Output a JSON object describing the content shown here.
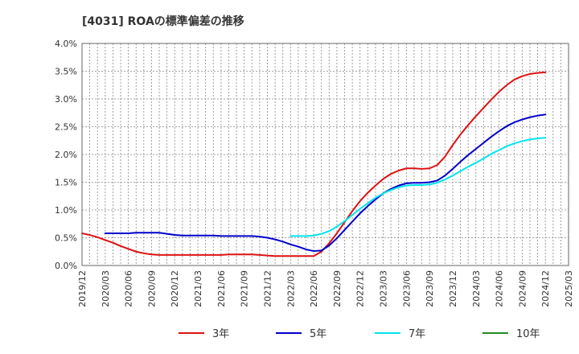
{
  "chart_data": {
    "type": "line",
    "title": "[4031]  ROAの標準偏差の推移",
    "xlabel": "",
    "ylabel": "",
    "ylim": [
      0,
      4.0
    ],
    "yticks": [
      "0.0%",
      "0.5%",
      "1.0%",
      "1.5%",
      "2.0%",
      "2.5%",
      "3.0%",
      "3.5%",
      "4.0%"
    ],
    "xticks": [
      "2019/12",
      "2020/03",
      "2020/06",
      "2020/09",
      "2020/12",
      "2021/03",
      "2021/06",
      "2021/09",
      "2021/12",
      "2022/03",
      "2022/06",
      "2022/09",
      "2022/12",
      "2023/03",
      "2023/06",
      "2023/09",
      "2023/12",
      "2024/03",
      "2024/06",
      "2024/09",
      "2024/12",
      "2025/03"
    ],
    "grid": true,
    "legend_position": "bottom",
    "series": [
      {
        "name": "3年",
        "color": "#dd1111",
        "points": [
          [
            "2019/12",
            0.58
          ],
          [
            "2020/01",
            0.55
          ],
          [
            "2020/02",
            0.51
          ],
          [
            "2020/03",
            0.46
          ],
          [
            "2020/04",
            0.41
          ],
          [
            "2020/05",
            0.35
          ],
          [
            "2020/06",
            0.3
          ],
          [
            "2020/07",
            0.25
          ],
          [
            "2020/08",
            0.22
          ],
          [
            "2020/09",
            0.2
          ],
          [
            "2020/10",
            0.19
          ],
          [
            "2020/11",
            0.19
          ],
          [
            "2020/12",
            0.19
          ],
          [
            "2021/01",
            0.19
          ],
          [
            "2021/02",
            0.19
          ],
          [
            "2021/03",
            0.19
          ],
          [
            "2021/04",
            0.19
          ],
          [
            "2021/05",
            0.19
          ],
          [
            "2021/06",
            0.19
          ],
          [
            "2021/07",
            0.2
          ],
          [
            "2021/08",
            0.2
          ],
          [
            "2021/09",
            0.2
          ],
          [
            "2021/10",
            0.2
          ],
          [
            "2021/11",
            0.19
          ],
          [
            "2021/12",
            0.18
          ],
          [
            "2022/01",
            0.17
          ],
          [
            "2022/02",
            0.17
          ],
          [
            "2022/03",
            0.17
          ],
          [
            "2022/04",
            0.17
          ],
          [
            "2022/05",
            0.17
          ],
          [
            "2022/06",
            0.17
          ],
          [
            "2022/07",
            0.25
          ],
          [
            "2022/08",
            0.4
          ],
          [
            "2022/09",
            0.58
          ],
          [
            "2022/10",
            0.78
          ],
          [
            "2022/11",
            0.98
          ],
          [
            "2022/12",
            1.16
          ],
          [
            "2023/01",
            1.31
          ],
          [
            "2023/02",
            1.44
          ],
          [
            "2023/03",
            1.56
          ],
          [
            "2023/04",
            1.65
          ],
          [
            "2023/05",
            1.71
          ],
          [
            "2023/06",
            1.75
          ],
          [
            "2023/07",
            1.75
          ],
          [
            "2023/08",
            1.74
          ],
          [
            "2023/09",
            1.75
          ],
          [
            "2023/10",
            1.81
          ],
          [
            "2023/11",
            1.96
          ],
          [
            "2023/12",
            2.17
          ],
          [
            "2024/01",
            2.36
          ],
          [
            "2024/02",
            2.53
          ],
          [
            "2024/03",
            2.69
          ],
          [
            "2024/04",
            2.84
          ],
          [
            "2024/05",
            2.99
          ],
          [
            "2024/06",
            3.13
          ],
          [
            "2024/07",
            3.25
          ],
          [
            "2024/08",
            3.35
          ],
          [
            "2024/09",
            3.41
          ],
          [
            "2024/10",
            3.45
          ],
          [
            "2024/11",
            3.47
          ],
          [
            "2024/12",
            3.48
          ]
        ]
      },
      {
        "name": "5年",
        "color": "#0000cc",
        "points": [
          [
            "2020/03",
            0.58
          ],
          [
            "2020/04",
            0.58
          ],
          [
            "2020/05",
            0.58
          ],
          [
            "2020/06",
            0.58
          ],
          [
            "2020/07",
            0.59
          ],
          [
            "2020/08",
            0.59
          ],
          [
            "2020/09",
            0.59
          ],
          [
            "2020/10",
            0.59
          ],
          [
            "2020/11",
            0.57
          ],
          [
            "2020/12",
            0.55
          ],
          [
            "2021/01",
            0.54
          ],
          [
            "2021/02",
            0.54
          ],
          [
            "2021/03",
            0.54
          ],
          [
            "2021/04",
            0.54
          ],
          [
            "2021/05",
            0.54
          ],
          [
            "2021/06",
            0.53
          ],
          [
            "2021/07",
            0.53
          ],
          [
            "2021/08",
            0.53
          ],
          [
            "2021/09",
            0.53
          ],
          [
            "2021/10",
            0.53
          ],
          [
            "2021/11",
            0.52
          ],
          [
            "2021/12",
            0.5
          ],
          [
            "2022/01",
            0.47
          ],
          [
            "2022/02",
            0.43
          ],
          [
            "2022/03",
            0.38
          ],
          [
            "2022/04",
            0.34
          ],
          [
            "2022/05",
            0.29
          ],
          [
            "2022/06",
            0.26
          ],
          [
            "2022/07",
            0.27
          ],
          [
            "2022/08",
            0.36
          ],
          [
            "2022/09",
            0.49
          ],
          [
            "2022/10",
            0.64
          ],
          [
            "2022/11",
            0.79
          ],
          [
            "2022/12",
            0.94
          ],
          [
            "2023/01",
            1.07
          ],
          [
            "2023/02",
            1.19
          ],
          [
            "2023/03",
            1.3
          ],
          [
            "2023/04",
            1.38
          ],
          [
            "2023/05",
            1.44
          ],
          [
            "2023/06",
            1.48
          ],
          [
            "2023/07",
            1.49
          ],
          [
            "2023/08",
            1.49
          ],
          [
            "2023/09",
            1.5
          ],
          [
            "2023/10",
            1.53
          ],
          [
            "2023/11",
            1.62
          ],
          [
            "2023/12",
            1.74
          ],
          [
            "2024/01",
            1.87
          ],
          [
            "2024/02",
            1.99
          ],
          [
            "2024/03",
            2.1
          ],
          [
            "2024/04",
            2.21
          ],
          [
            "2024/05",
            2.32
          ],
          [
            "2024/06",
            2.42
          ],
          [
            "2024/07",
            2.51
          ],
          [
            "2024/08",
            2.58
          ],
          [
            "2024/09",
            2.63
          ],
          [
            "2024/10",
            2.67
          ],
          [
            "2024/11",
            2.7
          ],
          [
            "2024/12",
            2.72
          ]
        ]
      },
      {
        "name": "7年",
        "color": "#00e5ee",
        "points": [
          [
            "2022/03",
            0.53
          ],
          [
            "2022/04",
            0.53
          ],
          [
            "2022/05",
            0.53
          ],
          [
            "2022/06",
            0.54
          ],
          [
            "2022/07",
            0.57
          ],
          [
            "2022/08",
            0.62
          ],
          [
            "2022/09",
            0.7
          ],
          [
            "2022/10",
            0.8
          ],
          [
            "2022/11",
            0.91
          ],
          [
            "2022/12",
            1.02
          ],
          [
            "2023/01",
            1.12
          ],
          [
            "2023/02",
            1.22
          ],
          [
            "2023/03",
            1.3
          ],
          [
            "2023/04",
            1.36
          ],
          [
            "2023/05",
            1.41
          ],
          [
            "2023/06",
            1.44
          ],
          [
            "2023/07",
            1.45
          ],
          [
            "2023/08",
            1.45
          ],
          [
            "2023/09",
            1.46
          ],
          [
            "2023/10",
            1.49
          ],
          [
            "2023/11",
            1.55
          ],
          [
            "2023/12",
            1.62
          ],
          [
            "2024/01",
            1.7
          ],
          [
            "2024/02",
            1.78
          ],
          [
            "2024/03",
            1.85
          ],
          [
            "2024/04",
            1.93
          ],
          [
            "2024/05",
            2.01
          ],
          [
            "2024/06",
            2.08
          ],
          [
            "2024/07",
            2.15
          ],
          [
            "2024/08",
            2.2
          ],
          [
            "2024/09",
            2.24
          ],
          [
            "2024/10",
            2.27
          ],
          [
            "2024/11",
            2.29
          ],
          [
            "2024/12",
            2.3
          ]
        ]
      },
      {
        "name": "10年",
        "color": "#228b22",
        "points": []
      }
    ]
  }
}
